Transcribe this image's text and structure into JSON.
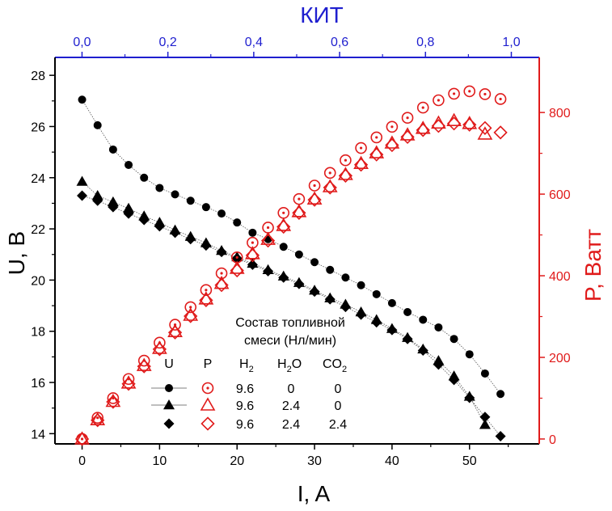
{
  "chart_data": {
    "type": "scatter",
    "axes": {
      "x_bottom": {
        "label": "I, A",
        "range": [
          -3.5,
          59
        ],
        "ticks": [
          0,
          10,
          20,
          30,
          40,
          50
        ],
        "color": "#000000"
      },
      "x_top": {
        "label": "КИТ",
        "range": [
          -0.063,
          1.065
        ],
        "ticks": [
          "0,0",
          "0,2",
          "0,4",
          "0,6",
          "0,8",
          "1,0"
        ],
        "tick_values": [
          0.0,
          0.2,
          0.4,
          0.6,
          0.8,
          1.0
        ],
        "color": "#1f1fcf"
      },
      "y_left": {
        "label": "U, B",
        "range": [
          13.6,
          28.7
        ],
        "ticks": [
          14,
          16,
          18,
          20,
          22,
          24,
          26,
          28
        ],
        "color": "#000000"
      },
      "y_right": {
        "label": "P, Ватт",
        "range": [
          -12,
          935
        ],
        "ticks": [
          0,
          200,
          400,
          600,
          800
        ],
        "color": "#e01b1b"
      }
    },
    "series": [
      {
        "axis": "left",
        "marker": "circle-filled",
        "color": "#000000",
        "line": true,
        "x": [
          0,
          2,
          4,
          6,
          8,
          10,
          12,
          14,
          16,
          18,
          20,
          22,
          24,
          26,
          28,
          30,
          32,
          34,
          36,
          38,
          40,
          42,
          44,
          46,
          48,
          50,
          52,
          54
        ],
        "y": [
          27.05,
          26.05,
          25.1,
          24.5,
          24.0,
          23.6,
          23.35,
          23.1,
          22.85,
          22.6,
          22.25,
          21.85,
          21.6,
          21.3,
          21.0,
          20.7,
          20.4,
          20.1,
          19.8,
          19.45,
          19.1,
          18.75,
          18.45,
          18.15,
          17.7,
          17.1,
          16.35,
          15.55
        ]
      },
      {
        "axis": "left",
        "marker": "triangle-filled",
        "color": "#000000",
        "line": true,
        "x": [
          0,
          2,
          4,
          6,
          8,
          10,
          12,
          14,
          16,
          18,
          20,
          22,
          24,
          26,
          28,
          30,
          32,
          34,
          36,
          38,
          40,
          42,
          44,
          46,
          48,
          50,
          52
        ],
        "y": [
          23.85,
          23.3,
          23.05,
          22.8,
          22.5,
          22.25,
          21.95,
          21.7,
          21.45,
          21.15,
          20.9,
          20.65,
          20.4,
          20.15,
          19.9,
          19.6,
          19.3,
          19.05,
          18.75,
          18.45,
          18.1,
          17.75,
          17.3,
          16.85,
          16.25,
          15.45,
          14.35
        ]
      },
      {
        "axis": "left",
        "marker": "diamond-filled",
        "color": "#000000",
        "line": true,
        "x": [
          0,
          2,
          4,
          6,
          8,
          10,
          12,
          14,
          16,
          18,
          20,
          22,
          24,
          26,
          28,
          30,
          32,
          34,
          36,
          38,
          40,
          42,
          44,
          46,
          48,
          50,
          52,
          54
        ],
        "y": [
          23.3,
          23.1,
          22.85,
          22.6,
          22.35,
          22.1,
          21.85,
          21.6,
          21.35,
          21.1,
          20.85,
          20.6,
          20.35,
          20.1,
          19.85,
          19.55,
          19.25,
          18.95,
          18.65,
          18.35,
          18.05,
          17.7,
          17.25,
          16.7,
          16.1,
          15.4,
          14.65,
          13.9
        ]
      },
      {
        "axis": "right",
        "marker": "circle-dot",
        "color": "#e01b1b",
        "line": false,
        "x": [
          0,
          2,
          4,
          6,
          8,
          10,
          12,
          14,
          16,
          18,
          20,
          22,
          24,
          26,
          28,
          30,
          32,
          34,
          36,
          38,
          40,
          42,
          44,
          46,
          48,
          50,
          52,
          54
        ],
        "y": [
          0,
          52,
          100,
          147,
          192,
          236,
          280,
          323,
          365,
          406,
          445,
          481,
          518,
          554,
          588,
          621,
          652,
          683,
          713,
          739,
          765,
          787,
          812,
          830,
          846,
          852,
          845,
          833
        ]
      },
      {
        "axis": "right",
        "marker": "triangle-open",
        "color": "#e01b1b",
        "line": false,
        "x": [
          0,
          2,
          4,
          6,
          8,
          10,
          12,
          14,
          16,
          18,
          20,
          22,
          24,
          26,
          28,
          30,
          32,
          34,
          36,
          38,
          40,
          42,
          44,
          46,
          48,
          50,
          52
        ],
        "y": [
          0,
          47,
          92,
          137,
          180,
          222,
          263,
          303,
          343,
          381,
          418,
          454,
          489,
          523,
          557,
          588,
          618,
          648,
          675,
          701,
          725,
          745,
          761,
          774,
          780,
          773,
          747
        ]
      },
      {
        "axis": "right",
        "marker": "diamond-open",
        "color": "#e01b1b",
        "line": false,
        "x": [
          0,
          2,
          4,
          6,
          8,
          10,
          12,
          14,
          16,
          18,
          20,
          22,
          24,
          26,
          28,
          30,
          32,
          34,
          36,
          38,
          40,
          42,
          44,
          46,
          48,
          50,
          52,
          54
        ],
        "y": [
          0,
          46,
          91,
          135,
          178,
          220,
          261,
          301,
          340,
          377,
          413,
          450,
          486,
          520,
          554,
          586,
          616,
          645,
          672,
          697,
          720,
          740,
          757,
          767,
          773,
          770,
          762,
          751
        ]
      }
    ],
    "legend": {
      "position": "bottom-right",
      "title_line1": "Состав топливной",
      "title_line2": "смеси (Нл/мин)",
      "col_u": "U",
      "col_p": "P",
      "col_h2_main": "H",
      "col_h2_sub": "2",
      "col_h2o_main": "H",
      "col_h2o_sub": "2",
      "col_h2o_tail": "O",
      "col_co2_main": "CO",
      "col_co2_sub": "2",
      "rows": [
        {
          "h2": "9.6",
          "h2o": "0",
          "co2": "0"
        },
        {
          "h2": "9.6",
          "h2o": "2.4",
          "co2": "0"
        },
        {
          "h2": "9.6",
          "h2o": "2.4",
          "co2": "2.4"
        }
      ]
    },
    "grid": false
  }
}
